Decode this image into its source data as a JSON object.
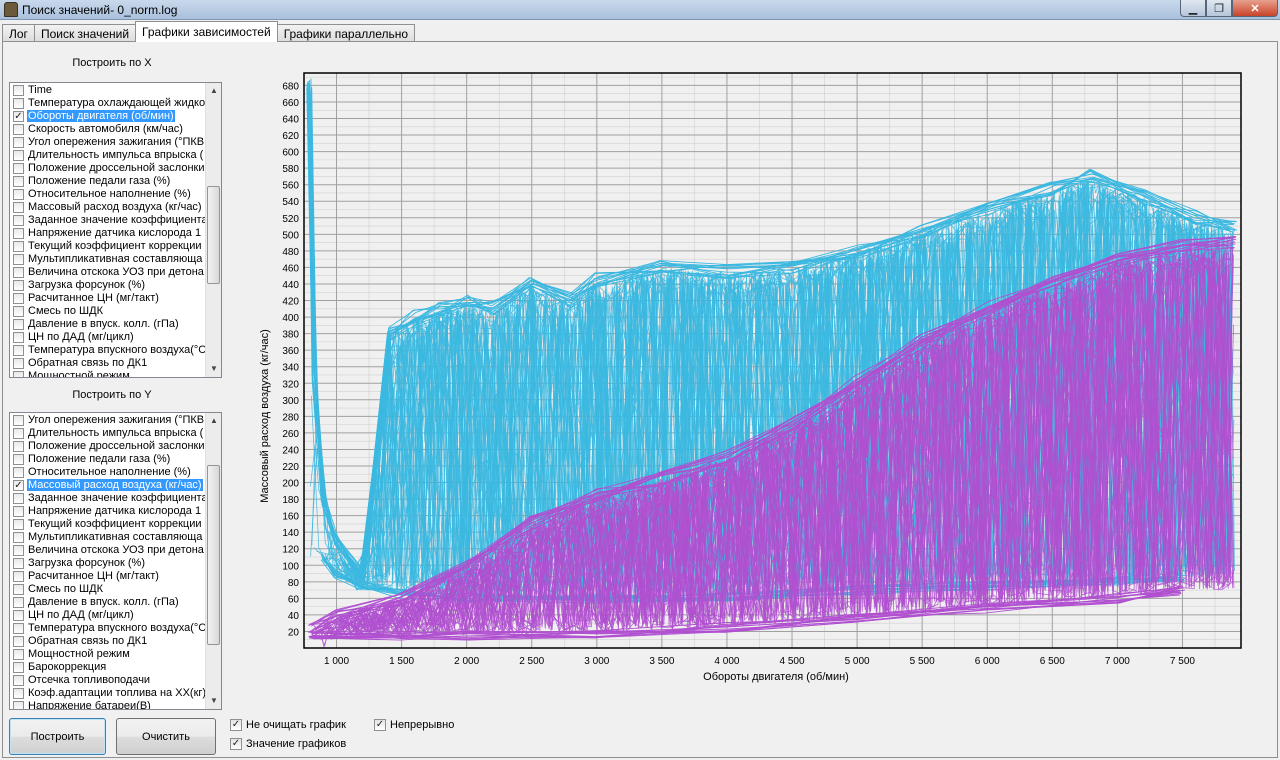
{
  "window": {
    "title": "Поиск значений- 0_norm.log"
  },
  "tabs": [
    {
      "label": "Лог"
    },
    {
      "label": "Поиск значений"
    },
    {
      "label": "Графики зависимостей"
    },
    {
      "label": "Графики параллельно"
    }
  ],
  "x_panel": {
    "title": "Построить по X",
    "items": [
      {
        "label": "Time",
        "checked": false
      },
      {
        "label": "Температура охлаждающей жидко",
        "checked": false
      },
      {
        "label": "Обороты  двигателя (об/мин)",
        "checked": true,
        "selected": true
      },
      {
        "label": "Скорость автомобиля (км/час)",
        "checked": false
      },
      {
        "label": "Угол опережения зажигания (°ПКВ",
        "checked": false
      },
      {
        "label": "Длительность импульса впрыска (",
        "checked": false
      },
      {
        "label": "Положение дроссельной заслонки",
        "checked": false
      },
      {
        "label": "Положение педали газа (%)",
        "checked": false
      },
      {
        "label": "Относительное наполнение (%)",
        "checked": false
      },
      {
        "label": "Массовый расход воздуха (кг/час)",
        "checked": false
      },
      {
        "label": "Заданное значение коэффициента",
        "checked": false
      },
      {
        "label": "Напряжение датчика кислорода 1",
        "checked": false
      },
      {
        "label": "Текущий коэффициент коррекции",
        "checked": false
      },
      {
        "label": "Мультипликативная составляюща",
        "checked": false
      },
      {
        "label": "Величина отскока УОЗ при детона",
        "checked": false
      },
      {
        "label": "Загрузка форсунок (%)",
        "checked": false
      },
      {
        "label": "Расчитанное ЦН (мг/такт)",
        "checked": false
      },
      {
        "label": "Смесь по ШДК",
        "checked": false
      },
      {
        "label": "Давление в впуск. колл. (гПа)",
        "checked": false
      },
      {
        "label": "ЦН по ДАД (мг/цикл)",
        "checked": false
      },
      {
        "label": "Температура впускного воздуха(°С",
        "checked": false
      },
      {
        "label": "Обратная связь по ДК1",
        "checked": false
      },
      {
        "label": "Мощностной режим",
        "checked": false
      }
    ]
  },
  "y_panel": {
    "title": "Построить по Y",
    "items": [
      {
        "label": "Угол опережения зажигания (°ПКВ",
        "checked": false
      },
      {
        "label": "Длительность импульса впрыска (",
        "checked": false
      },
      {
        "label": "Положение дроссельной заслонки",
        "checked": false
      },
      {
        "label": "Положение педали газа (%)",
        "checked": false
      },
      {
        "label": "Относительное наполнение (%)",
        "checked": false
      },
      {
        "label": "Массовый расход воздуха (кг/час)",
        "checked": true,
        "selected": true
      },
      {
        "label": "Заданное значение коэффициента",
        "checked": false
      },
      {
        "label": "Напряжение датчика кислорода 1",
        "checked": false
      },
      {
        "label": "Текущий коэффициент коррекции",
        "checked": false
      },
      {
        "label": "Мультипликативная составляюща",
        "checked": false
      },
      {
        "label": "Величина отскока УОЗ при детона",
        "checked": false
      },
      {
        "label": "Загрузка форсунок (%)",
        "checked": false
      },
      {
        "label": "Расчитанное ЦН (мг/такт)",
        "checked": false
      },
      {
        "label": "Смесь по ШДК",
        "checked": false
      },
      {
        "label": "Давление в впуск. колл. (гПа)",
        "checked": false
      },
      {
        "label": "ЦН по ДАД (мг/цикл)",
        "checked": false
      },
      {
        "label": "Температура впускного воздуха(°С",
        "checked": false
      },
      {
        "label": "Обратная связь по ДК1",
        "checked": false
      },
      {
        "label": "Мощностной режим",
        "checked": false
      },
      {
        "label": "Барокоррекция",
        "checked": false
      },
      {
        "label": "Отсечка топливоподачи",
        "checked": false
      },
      {
        "label": "Коэф.адаптации топлива на ХХ(кг)",
        "checked": false
      },
      {
        "label": "Напряжение батареи(В)",
        "checked": false
      }
    ]
  },
  "buttons": {
    "build": "Построить",
    "clear": "Очистить"
  },
  "options": {
    "dont_clear": {
      "label": "Не очищать график",
      "checked": true
    },
    "continuous": {
      "label": "Непрерывно",
      "checked": true
    },
    "values": {
      "label": "Значение графиков",
      "checked": true
    }
  },
  "colors": {
    "series_cyan": "#3bb8e0",
    "series_magenta": "#b050d0",
    "selection": "#3399ff",
    "grid": "#a0a0a0"
  },
  "chart_data": {
    "type": "line",
    "xlabel": "Обороты двигателя (об/мин)",
    "ylabel": "Массовый расход воздуха (кг/час)",
    "xlim": [
      750,
      7950
    ],
    "ylim": [
      0,
      695
    ],
    "x_ticks": [
      "1 000",
      "1 500",
      "2 000",
      "2 500",
      "3 000",
      "3 500",
      "4 000",
      "4 500",
      "5 000",
      "5 500",
      "6 000",
      "6 500",
      "7 000",
      "7 500"
    ],
    "y_ticks": [
      "20",
      "40",
      "60",
      "80",
      "100",
      "120",
      "140",
      "160",
      "180",
      "200",
      "220",
      "240",
      "260",
      "280",
      "300",
      "320",
      "340",
      "360",
      "380",
      "400",
      "420",
      "440",
      "460",
      "480",
      "500",
      "520",
      "540",
      "560",
      "580",
      "600",
      "620",
      "640",
      "660",
      "680"
    ],
    "grid": true,
    "legend": "none",
    "series": [
      {
        "color": "#3bb8e0",
        "upper_envelope": [
          [
            790,
            680
          ],
          [
            830,
            330
          ],
          [
            900,
            180
          ],
          [
            1000,
            130
          ],
          [
            1200,
            90
          ],
          [
            1400,
            380
          ],
          [
            1600,
            400
          ],
          [
            1800,
            410
          ],
          [
            2000,
            420
          ],
          [
            2200,
            410
          ],
          [
            2500,
            440
          ],
          [
            2800,
            420
          ],
          [
            3000,
            445
          ],
          [
            3500,
            460
          ],
          [
            4000,
            455
          ],
          [
            4500,
            460
          ],
          [
            5000,
            480
          ],
          [
            5500,
            505
          ],
          [
            6000,
            530
          ],
          [
            6500,
            555
          ],
          [
            6800,
            570
          ],
          [
            7200,
            545
          ],
          [
            7600,
            520
          ],
          [
            7900,
            510
          ]
        ],
        "lower_envelope": [
          [
            900,
            110
          ],
          [
            1000,
            90
          ],
          [
            1200,
            75
          ],
          [
            1500,
            65
          ],
          [
            2000,
            60
          ],
          [
            3000,
            60
          ],
          [
            4000,
            62
          ],
          [
            5000,
            70
          ],
          [
            6000,
            75
          ],
          [
            7000,
            80
          ],
          [
            7500,
            85
          ]
        ]
      },
      {
        "color": "#b050d0",
        "upper_envelope": [
          [
            800,
            20
          ],
          [
            1000,
            40
          ],
          [
            1500,
            60
          ],
          [
            2000,
            100
          ],
          [
            2500,
            150
          ],
          [
            3000,
            185
          ],
          [
            3500,
            205
          ],
          [
            4000,
            230
          ],
          [
            4500,
            270
          ],
          [
            5000,
            320
          ],
          [
            5500,
            370
          ],
          [
            6000,
            410
          ],
          [
            6500,
            440
          ],
          [
            7000,
            470
          ],
          [
            7500,
            485
          ],
          [
            7900,
            490
          ]
        ],
        "lower_envelope": [
          [
            800,
            15
          ],
          [
            1500,
            15
          ],
          [
            2000,
            15
          ],
          [
            3000,
            18
          ],
          [
            4000,
            25
          ],
          [
            5000,
            35
          ],
          [
            6000,
            48
          ],
          [
            7000,
            60
          ],
          [
            7500,
            70
          ]
        ]
      }
    ]
  }
}
